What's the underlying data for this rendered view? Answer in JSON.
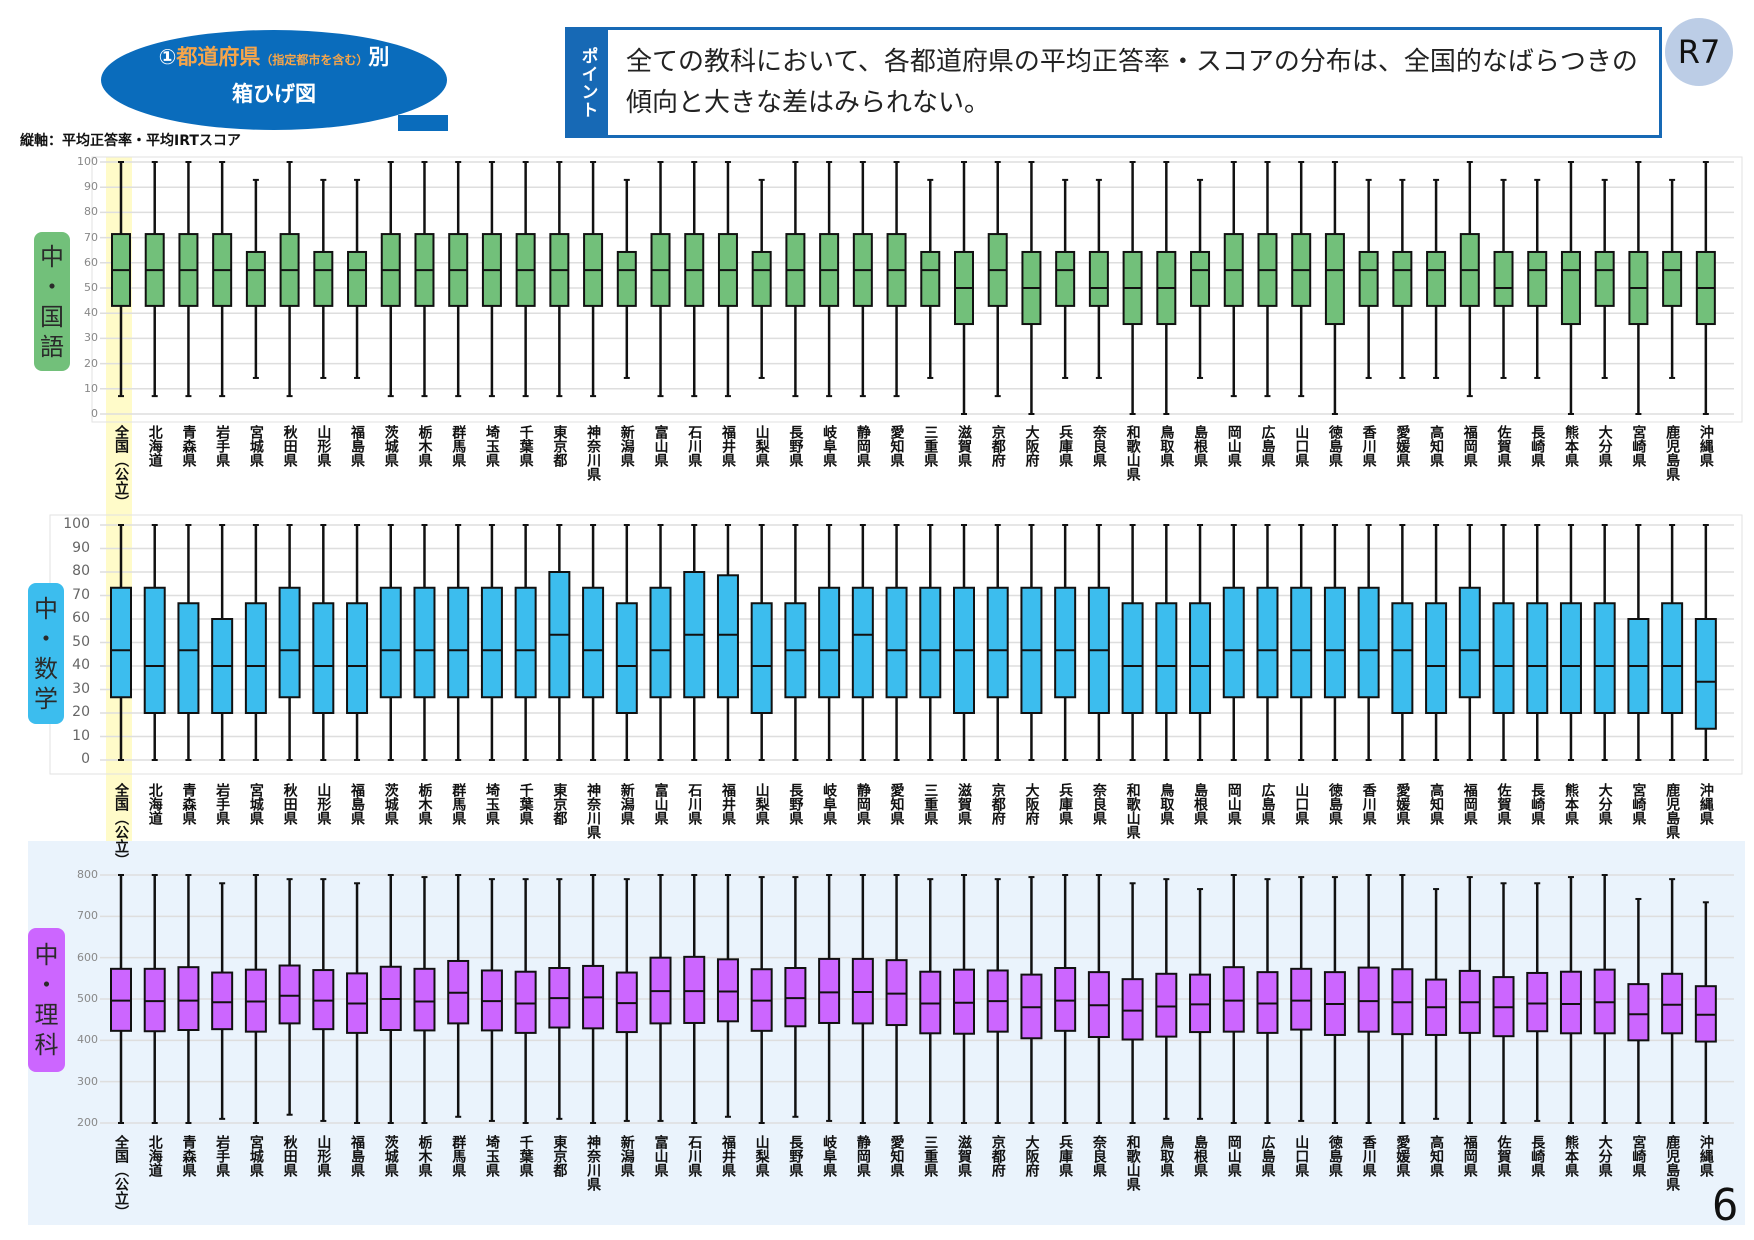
{
  "title": {
    "prefix": "①",
    "main": "都道府県",
    "note": "（指定都市を含む）",
    "suffix": "別",
    "line2": "箱ひげ図"
  },
  "axis_caption": "縦軸：平均正答率・平均IRTスコア",
  "point": {
    "tab": "ポイント",
    "text": "全ての教科において、各都道府県の平均正答率・スコアの分布は、全国的なばらつきの傾向と大きな差はみられない。"
  },
  "badge": "R7",
  "page_number": "6",
  "colors": {
    "title": "#0a6cbc",
    "accent_orange": "#f6a54a",
    "japanese": "#72c07a",
    "math": "#3cbdee",
    "science": "#cc66ff",
    "national_highlight": "#fffbc9",
    "science_bg": "#eaf3fc"
  },
  "chart_data": [
    {
      "type": "box",
      "panel_label": [
        "中",
        "・",
        "国",
        "語"
      ],
      "ylim": [
        0,
        100
      ],
      "yticks": [
        0,
        10,
        20,
        30,
        40,
        50,
        60,
        70,
        80,
        90,
        100
      ],
      "grid": true,
      "categories": [
        "全国（公立）",
        "北海道",
        "青森県",
        "岩手県",
        "宮城県",
        "秋田県",
        "山形県",
        "福島県",
        "茨城県",
        "栃木県",
        "群馬県",
        "埼玉県",
        "千葉県",
        "東京都",
        "神奈川県",
        "新潟県",
        "富山県",
        "石川県",
        "福井県",
        "山梨県",
        "長野県",
        "岐阜県",
        "静岡県",
        "愛知県",
        "三重県",
        "滋賀県",
        "京都府",
        "大阪府",
        "兵庫県",
        "奈良県",
        "和歌山県",
        "鳥取県",
        "島根県",
        "岡山県",
        "広島県",
        "山口県",
        "徳島県",
        "香川県",
        "愛媛県",
        "高知県",
        "福岡県",
        "佐賀県",
        "長崎県",
        "熊本県",
        "大分県",
        "宮崎県",
        "鹿児島県",
        "沖縄県"
      ],
      "box_fields": [
        "min",
        "q1",
        "median",
        "q3",
        "max"
      ],
      "values": [
        [
          7.1,
          42.9,
          57.1,
          71.4,
          100
        ],
        [
          7.1,
          42.9,
          57.1,
          71.4,
          100
        ],
        [
          7.1,
          42.9,
          57.1,
          71.4,
          100
        ],
        [
          7.1,
          42.9,
          57.1,
          71.4,
          100
        ],
        [
          14.3,
          42.9,
          57.1,
          64.3,
          92.9
        ],
        [
          7.1,
          42.9,
          57.1,
          71.4,
          100
        ],
        [
          14.3,
          42.9,
          57.1,
          64.3,
          92.9
        ],
        [
          14.3,
          42.9,
          57.1,
          64.3,
          92.9
        ],
        [
          7.1,
          42.9,
          57.1,
          71.4,
          100
        ],
        [
          7.1,
          42.9,
          57.1,
          71.4,
          100
        ],
        [
          7.1,
          42.9,
          57.1,
          71.4,
          100
        ],
        [
          7.1,
          42.9,
          57.1,
          71.4,
          100
        ],
        [
          7.1,
          42.9,
          57.1,
          71.4,
          100
        ],
        [
          7.1,
          42.9,
          57.1,
          71.4,
          100
        ],
        [
          7.1,
          42.9,
          57.1,
          71.4,
          100
        ],
        [
          14.3,
          42.9,
          57.1,
          64.3,
          92.9
        ],
        [
          7.1,
          42.9,
          57.1,
          71.4,
          100
        ],
        [
          7.1,
          42.9,
          57.1,
          71.4,
          100
        ],
        [
          7.1,
          42.9,
          57.1,
          71.4,
          100
        ],
        [
          14.3,
          42.9,
          57.1,
          64.3,
          92.9
        ],
        [
          7.1,
          42.9,
          57.1,
          71.4,
          100
        ],
        [
          7.1,
          42.9,
          57.1,
          71.4,
          100
        ],
        [
          7.1,
          42.9,
          57.1,
          71.4,
          100
        ],
        [
          7.1,
          42.9,
          57.1,
          71.4,
          100
        ],
        [
          14.3,
          42.9,
          57.1,
          64.3,
          92.9
        ],
        [
          0,
          35.7,
          50,
          64.3,
          100
        ],
        [
          7.1,
          42.9,
          57.1,
          71.4,
          100
        ],
        [
          0,
          35.7,
          50,
          64.3,
          100
        ],
        [
          14.3,
          42.9,
          57.1,
          64.3,
          92.9
        ],
        [
          14.3,
          42.9,
          50,
          64.3,
          92.9
        ],
        [
          0,
          35.7,
          50,
          64.3,
          100
        ],
        [
          0,
          35.7,
          50,
          64.3,
          100
        ],
        [
          14.3,
          42.9,
          57.1,
          64.3,
          92.9
        ],
        [
          7.1,
          42.9,
          57.1,
          71.4,
          100
        ],
        [
          7.1,
          42.9,
          57.1,
          71.4,
          100
        ],
        [
          7.1,
          42.9,
          57.1,
          71.4,
          100
        ],
        [
          0,
          35.7,
          57.1,
          71.4,
          100
        ],
        [
          14.3,
          42.9,
          57.1,
          64.3,
          92.9
        ],
        [
          14.3,
          42.9,
          57.1,
          64.3,
          92.9
        ],
        [
          14.3,
          42.9,
          57.1,
          64.3,
          92.9
        ],
        [
          7.1,
          42.9,
          57.1,
          71.4,
          100
        ],
        [
          14.3,
          42.9,
          50,
          64.3,
          92.9
        ],
        [
          14.3,
          42.9,
          57.1,
          64.3,
          92.9
        ],
        [
          0,
          35.7,
          57.1,
          64.3,
          100
        ],
        [
          14.3,
          42.9,
          57.1,
          64.3,
          92.9
        ],
        [
          0,
          35.7,
          50,
          64.3,
          100
        ],
        [
          14.3,
          42.9,
          57.1,
          64.3,
          92.9
        ],
        [
          0,
          35.7,
          50,
          64.3,
          100
        ]
      ]
    },
    {
      "type": "box",
      "panel_label": [
        "中",
        "・",
        "数",
        "学"
      ],
      "ylim": [
        0,
        100
      ],
      "yticks": [
        0,
        10,
        20,
        30,
        40,
        50,
        60,
        70,
        80,
        90,
        100
      ],
      "grid": true,
      "categories": [
        "全国（公立）",
        "北海道",
        "青森県",
        "岩手県",
        "宮城県",
        "秋田県",
        "山形県",
        "福島県",
        "茨城県",
        "栃木県",
        "群馬県",
        "埼玉県",
        "千葉県",
        "東京都",
        "神奈川県",
        "新潟県",
        "富山県",
        "石川県",
        "福井県",
        "山梨県",
        "長野県",
        "岐阜県",
        "静岡県",
        "愛知県",
        "三重県",
        "滋賀県",
        "京都府",
        "大阪府",
        "兵庫県",
        "奈良県",
        "和歌山県",
        "鳥取県",
        "島根県",
        "岡山県",
        "広島県",
        "山口県",
        "徳島県",
        "香川県",
        "愛媛県",
        "高知県",
        "福岡県",
        "佐賀県",
        "長崎県",
        "熊本県",
        "大分県",
        "宮崎県",
        "鹿児島県",
        "沖縄県"
      ],
      "box_fields": [
        "min",
        "q1",
        "median",
        "q3",
        "max"
      ],
      "values": [
        [
          0,
          26.7,
          46.7,
          73.3,
          100
        ],
        [
          0,
          20,
          40,
          73.3,
          100
        ],
        [
          0,
          20,
          46.7,
          66.7,
          100
        ],
        [
          0,
          20,
          40,
          60,
          100
        ],
        [
          0,
          20,
          40,
          66.7,
          100
        ],
        [
          0,
          26.7,
          46.7,
          73.3,
          100
        ],
        [
          0,
          20,
          40,
          66.7,
          100
        ],
        [
          0,
          20,
          40,
          66.7,
          100
        ],
        [
          0,
          26.7,
          46.7,
          73.3,
          100
        ],
        [
          0,
          26.7,
          46.7,
          73.3,
          100
        ],
        [
          0,
          26.7,
          46.7,
          73.3,
          100
        ],
        [
          0,
          26.7,
          46.7,
          73.3,
          100
        ],
        [
          0,
          26.7,
          46.7,
          73.3,
          100
        ],
        [
          0,
          26.7,
          53.3,
          80,
          100
        ],
        [
          0,
          26.7,
          46.7,
          73.3,
          100
        ],
        [
          0,
          20,
          40,
          66.7,
          100
        ],
        [
          0,
          26.7,
          46.7,
          73.3,
          100
        ],
        [
          0,
          26.7,
          53.3,
          80,
          100
        ],
        [
          0,
          26.7,
          53.3,
          78.6,
          100
        ],
        [
          0,
          20,
          40,
          66.7,
          100
        ],
        [
          0,
          26.7,
          46.7,
          66.7,
          100
        ],
        [
          0,
          26.7,
          46.7,
          73.3,
          100
        ],
        [
          0,
          26.7,
          53.3,
          73.3,
          100
        ],
        [
          0,
          26.7,
          46.7,
          73.3,
          100
        ],
        [
          0,
          26.7,
          46.7,
          73.3,
          100
        ],
        [
          0,
          20,
          46.7,
          73.3,
          100
        ],
        [
          0,
          26.7,
          46.7,
          73.3,
          100
        ],
        [
          0,
          20,
          46.7,
          73.3,
          100
        ],
        [
          0,
          26.7,
          46.7,
          73.3,
          100
        ],
        [
          0,
          20,
          46.7,
          73.3,
          100
        ],
        [
          0,
          20,
          40,
          66.7,
          100
        ],
        [
          0,
          20,
          40,
          66.7,
          100
        ],
        [
          0,
          20,
          40,
          66.7,
          100
        ],
        [
          0,
          26.7,
          46.7,
          73.3,
          100
        ],
        [
          0,
          26.7,
          46.7,
          73.3,
          100
        ],
        [
          0,
          26.7,
          46.7,
          73.3,
          100
        ],
        [
          0,
          26.7,
          46.7,
          73.3,
          100
        ],
        [
          0,
          26.7,
          46.7,
          73.3,
          100
        ],
        [
          0,
          20,
          46.7,
          66.7,
          100
        ],
        [
          0,
          20,
          40,
          66.7,
          100
        ],
        [
          0,
          26.7,
          46.7,
          73.3,
          100
        ],
        [
          0,
          20,
          40,
          66.7,
          100
        ],
        [
          0,
          20,
          40,
          66.7,
          100
        ],
        [
          0,
          20,
          40,
          66.7,
          100
        ],
        [
          0,
          20,
          40,
          66.7,
          100
        ],
        [
          0,
          20,
          40,
          60,
          100
        ],
        [
          0,
          20,
          40,
          66.7,
          100
        ],
        [
          0,
          13.3,
          33.3,
          60,
          100
        ]
      ]
    },
    {
      "type": "box",
      "panel_label": [
        "中",
        "・",
        "理",
        "科"
      ],
      "ylim": [
        200,
        800
      ],
      "yticks": [
        200,
        300,
        400,
        500,
        600,
        700,
        800
      ],
      "grid": true,
      "categories": [
        "全国（公立）",
        "北海道",
        "青森県",
        "岩手県",
        "宮城県",
        "秋田県",
        "山形県",
        "福島県",
        "茨城県",
        "栃木県",
        "群馬県",
        "埼玉県",
        "千葉県",
        "東京都",
        "神奈川県",
        "新潟県",
        "富山県",
        "石川県",
        "福井県",
        "山梨県",
        "長野県",
        "岐阜県",
        "静岡県",
        "愛知県",
        "三重県",
        "滋賀県",
        "京都府",
        "大阪府",
        "兵庫県",
        "奈良県",
        "和歌山県",
        "鳥取県",
        "島根県",
        "岡山県",
        "広島県",
        "山口県",
        "徳島県",
        "香川県",
        "愛媛県",
        "高知県",
        "福岡県",
        "佐賀県",
        "長崎県",
        "熊本県",
        "大分県",
        "宮崎県",
        "鹿児島県",
        "沖縄県"
      ],
      "box_fields": [
        "min",
        "q1",
        "median",
        "q3",
        "max"
      ],
      "values": [
        [
          200,
          423,
          496,
          573,
          800
        ],
        [
          200,
          422,
          495,
          573,
          800
        ],
        [
          200,
          425,
          496,
          577,
          800
        ],
        [
          210,
          427,
          492,
          564,
          780
        ],
        [
          200,
          421,
          494,
          571,
          800
        ],
        [
          220,
          441,
          508,
          581,
          790
        ],
        [
          205,
          427,
          496,
          570,
          790
        ],
        [
          200,
          418,
          489,
          562,
          780
        ],
        [
          200,
          425,
          500,
          578,
          800
        ],
        [
          200,
          424,
          494,
          573,
          795
        ],
        [
          215,
          441,
          515,
          592,
          800
        ],
        [
          205,
          424,
          495,
          569,
          790
        ],
        [
          200,
          418,
          489,
          566,
          790
        ],
        [
          210,
          431,
          502,
          575,
          790
        ],
        [
          200,
          429,
          504,
          580,
          800
        ],
        [
          205,
          420,
          490,
          564,
          790
        ],
        [
          205,
          441,
          519,
          600,
          800
        ],
        [
          200,
          442,
          519,
          602,
          800
        ],
        [
          215,
          446,
          518,
          596,
          800
        ],
        [
          200,
          423,
          496,
          572,
          795
        ],
        [
          215,
          434,
          502,
          575,
          795
        ],
        [
          205,
          442,
          516,
          597,
          800
        ],
        [
          200,
          441,
          517,
          597,
          800
        ],
        [
          200,
          437,
          513,
          594,
          800
        ],
        [
          200,
          417,
          489,
          566,
          790
        ],
        [
          200,
          416,
          491,
          571,
          800
        ],
        [
          200,
          421,
          495,
          569,
          790
        ],
        [
          200,
          405,
          480,
          559,
          795
        ],
        [
          200,
          423,
          496,
          575,
          800
        ],
        [
          200,
          408,
          485,
          565,
          800
        ],
        [
          200,
          402,
          472,
          548,
          780
        ],
        [
          210,
          409,
          482,
          561,
          790
        ],
        [
          210,
          420,
          487,
          559,
          766
        ],
        [
          200,
          421,
          496,
          577,
          800
        ],
        [
          200,
          418,
          489,
          565,
          790
        ],
        [
          205,
          426,
          496,
          573,
          795
        ],
        [
          200,
          413,
          488,
          565,
          795
        ],
        [
          200,
          421,
          495,
          576,
          800
        ],
        [
          200,
          415,
          492,
          572,
          800
        ],
        [
          210,
          413,
          480,
          547,
          766
        ],
        [
          200,
          418,
          492,
          568,
          795
        ],
        [
          200,
          410,
          480,
          553,
          780
        ],
        [
          205,
          422,
          489,
          563,
          780
        ],
        [
          200,
          417,
          488,
          566,
          795
        ],
        [
          200,
          417,
          492,
          571,
          800
        ],
        [
          200,
          400,
          463,
          536,
          742
        ],
        [
          200,
          417,
          486,
          561,
          790
        ],
        [
          200,
          397,
          462,
          531,
          734
        ]
      ]
    }
  ]
}
